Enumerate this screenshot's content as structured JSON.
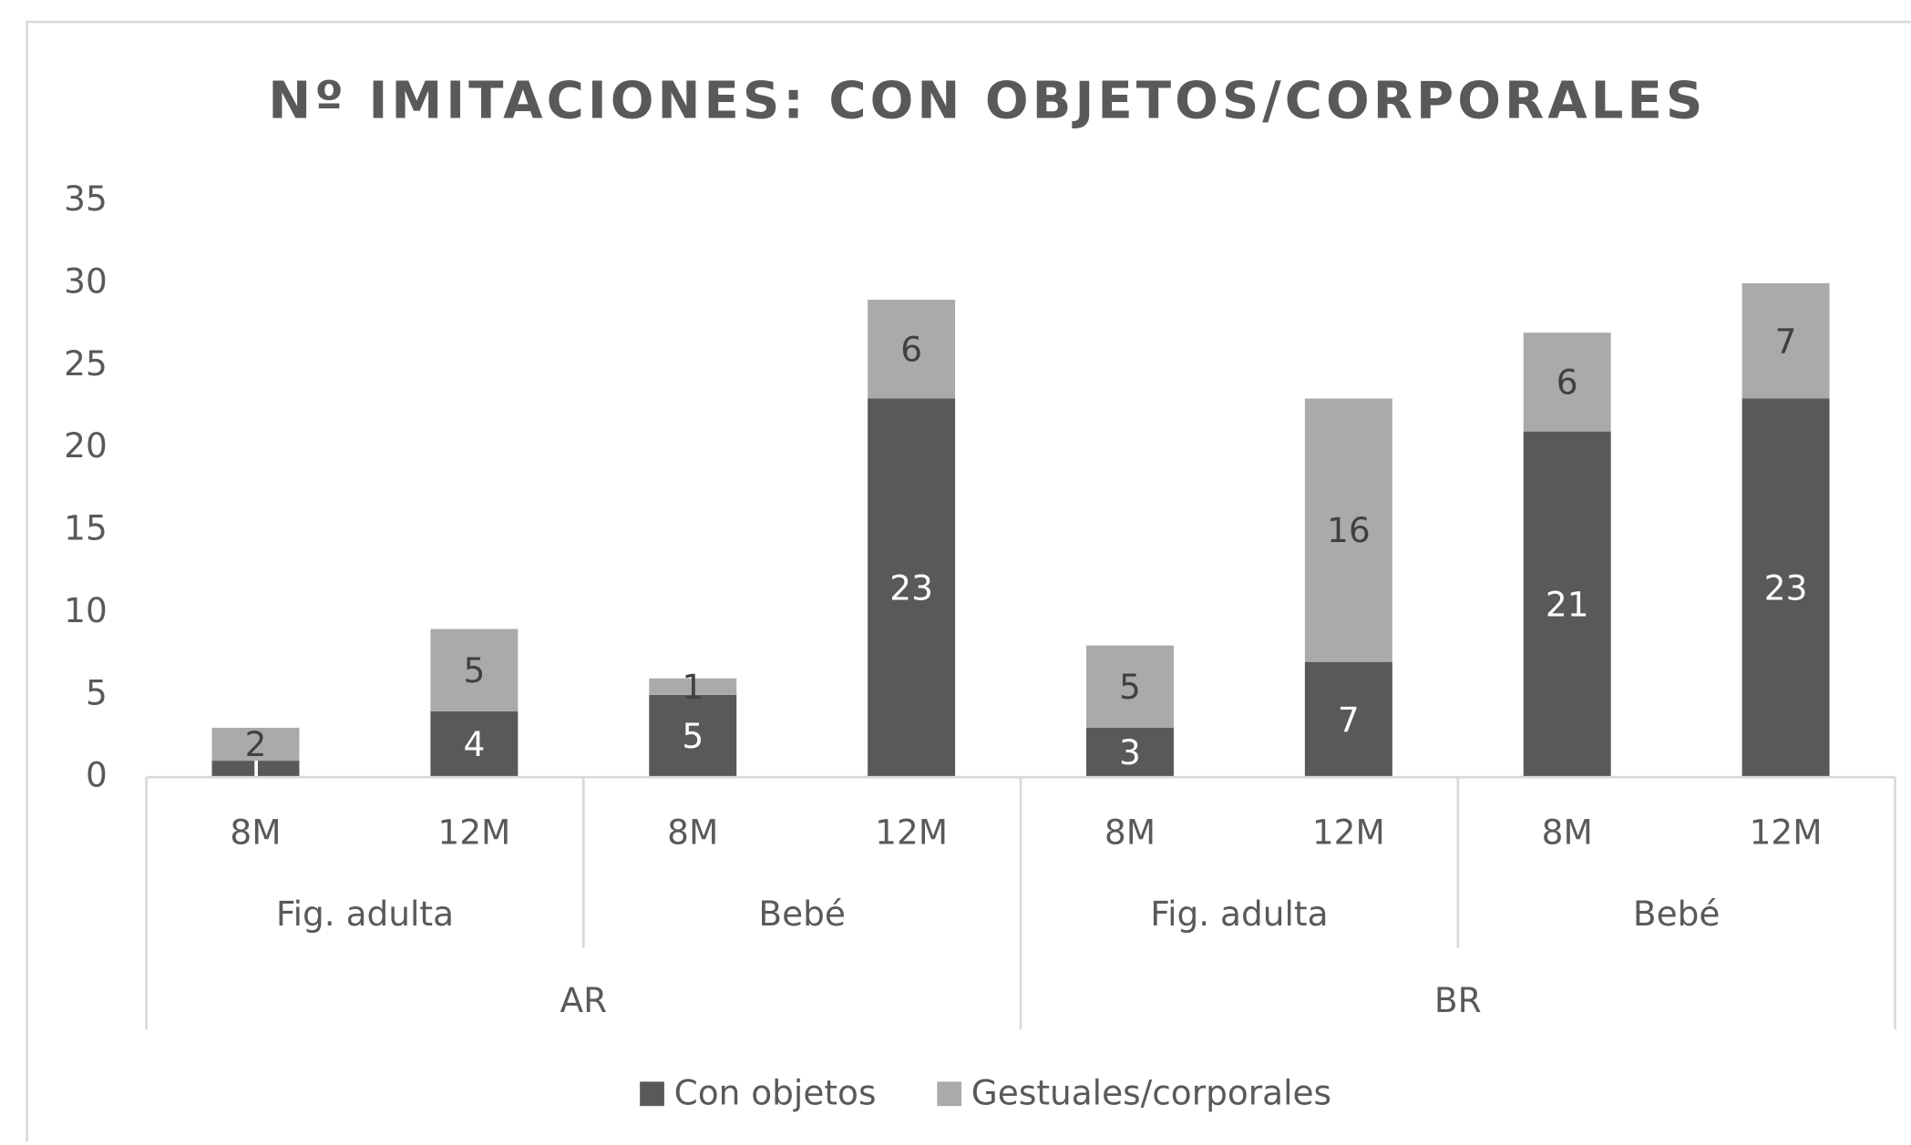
{
  "chart_data": {
    "type": "stacked_bar",
    "title": "Nº IMITACIONES:  CON OBJETOS/CORPORALES",
    "groups": [
      {
        "name": "AR",
        "subgroups": [
          {
            "name": "Fig. adulta",
            "categories": [
              "8M",
              "12M"
            ]
          },
          {
            "name": "Bebé",
            "categories": [
              "8M",
              "12M"
            ]
          }
        ]
      },
      {
        "name": "BR",
        "subgroups": [
          {
            "name": "Fig. adulta",
            "categories": [
              "8M",
              "12M"
            ]
          },
          {
            "name": "Bebé",
            "categories": [
              "8M",
              "12M"
            ]
          }
        ]
      }
    ],
    "series": [
      {
        "name": "Con objetos",
        "color": "#595959",
        "values": [
          1,
          4,
          5,
          23,
          3,
          7,
          21,
          23
        ]
      },
      {
        "name": "Gestuales/corporales",
        "color": "#aaaaaa",
        "values": [
          2,
          5,
          1,
          6,
          5,
          16,
          6,
          7
        ]
      }
    ],
    "ylim": [
      0,
      35
    ],
    "yticks": [
      0,
      5,
      10,
      15,
      20,
      25,
      30,
      35
    ],
    "grid": false,
    "legend": "bottom",
    "data_labels": true
  }
}
